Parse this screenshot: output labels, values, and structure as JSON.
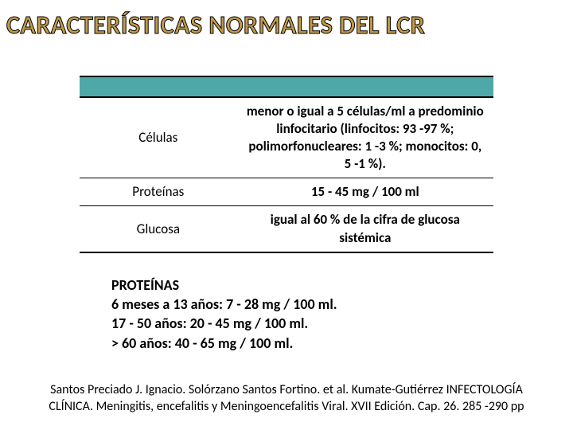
{
  "title": "CARACTERÍSTICAS NORMALES DEL LCR",
  "table": {
    "header_band_color": "#4fa8a8",
    "border_color": "#000000",
    "rows": [
      {
        "label": "Células",
        "value": "menor o igual a 5 células/ml a predominio linfocitario (linfocitos: 93 -97 %; polimorfonucleares: 1 -3 %; monocitos: 0, 5 -1 %)."
      },
      {
        "label": "Proteínas",
        "value": "15 - 45 mg / 100 ml"
      },
      {
        "label": "Glucosa",
        "value": "igual al 60 % de la cifra de glucosa sistémica"
      }
    ]
  },
  "proteins_block": {
    "heading": "PROTEÍNAS",
    "lines": [
      "6 meses a 13 años: 7 - 28 mg / 100 ml.",
      "17 - 50 años: 20 - 45 mg / 100 ml.",
      " > 60 años: 40 - 65 mg / 100 ml."
    ]
  },
  "citation": "Santos Preciado J. Ignacio. Solórzano Santos Fortino. et al. Kumate-Gutiérrez INFECTOLOGÍA CLÍNICA. Meningitis, encefalitis y Meningoencefalitis Viral. XVII Edición. Cap. 26. 285 -290 pp",
  "colors": {
    "title_fill": "#c19a4b",
    "title_stroke": "#000000",
    "background": "#ffffff",
    "text": "#000000"
  },
  "fonts": {
    "title_size_pt": 24,
    "body_size_pt": 13,
    "citation_size_pt": 12
  }
}
